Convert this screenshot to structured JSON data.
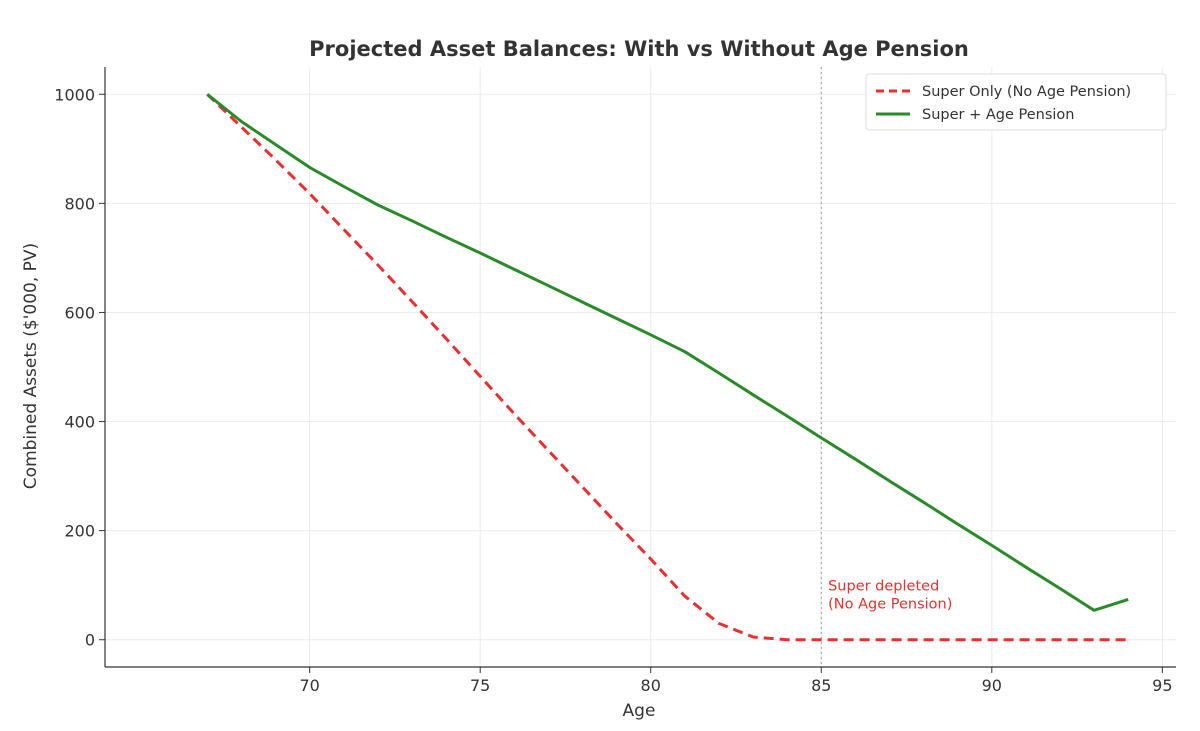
{
  "chart_data": {
    "type": "line",
    "title": "Projected Asset Balances: With vs Without Age Pension",
    "xlabel": "Age",
    "ylabel": "Combined Assets ($'000, PV)",
    "xlim": [
      64,
      95.4
    ],
    "ylim": [
      -50,
      1050
    ],
    "xticks": [
      70,
      75,
      80,
      85,
      90,
      95
    ],
    "yticks": [
      0,
      200,
      400,
      600,
      800,
      1000
    ],
    "grid": true,
    "legend_position": "top-right",
    "series": [
      {
        "name": "Super Only (No Age Pension)",
        "color": "#e8302f",
        "style": "dashed",
        "x": [
          67,
          68,
          69,
          70,
          71,
          72,
          73,
          74,
          75,
          76,
          77,
          78,
          79,
          80,
          81,
          82,
          83,
          84,
          85,
          86,
          87,
          88,
          89,
          90,
          91,
          92,
          93,
          94
        ],
        "y": [
          1000,
          940,
          880,
          818,
          752,
          687,
          620,
          552,
          483,
          414,
          347,
          280,
          213,
          148,
          80,
          30,
          5,
          0,
          0,
          0,
          0,
          0,
          0,
          0,
          0,
          0,
          0,
          0
        ]
      },
      {
        "name": "Super + Age Pension",
        "color": "#2a8a2a",
        "style": "solid",
        "x": [
          67,
          68,
          69,
          70,
          71,
          72,
          73,
          74,
          75,
          76,
          77,
          78,
          79,
          80,
          81,
          82,
          83,
          84,
          85,
          86,
          87,
          88,
          89,
          90,
          91,
          92,
          93,
          94
        ],
        "y": [
          1000,
          950,
          908,
          866,
          831,
          797,
          768,
          738,
          709,
          679,
          649,
          619,
          589,
          559,
          528,
          489,
          449,
          410,
          370,
          331,
          291,
          252,
          212,
          173,
          133,
          94,
          54,
          74
        ]
      }
    ],
    "reference_line": {
      "x": 85,
      "style": "dotted",
      "color": "#999999"
    },
    "annotation": {
      "lines": [
        "Super depleted",
        "(No Age Pension)"
      ],
      "x": 85.2,
      "y": 72,
      "color": "#e8302f"
    }
  }
}
